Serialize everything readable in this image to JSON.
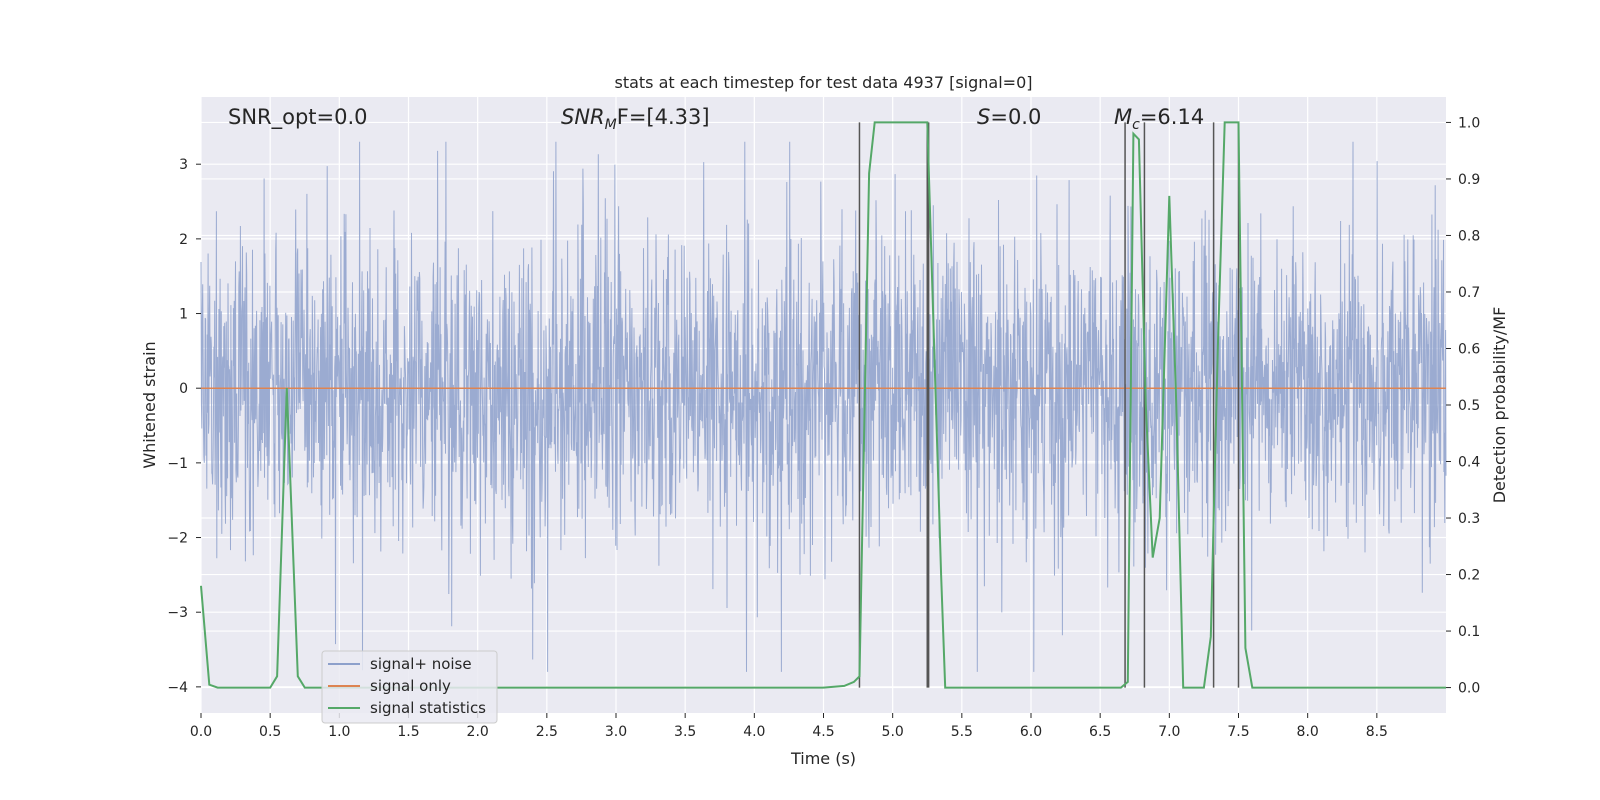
{
  "chart_data": {
    "type": "line",
    "title": "stats at each timestep for test data 4937 [signal=0]",
    "xlabel": "Time (s)",
    "ylabel": "Whitened strain",
    "y2label": "Detection probability/MF",
    "xlim": [
      0,
      9.0
    ],
    "ylim": [
      -4.35,
      3.9
    ],
    "y2lim": [
      -0.045,
      1.045
    ],
    "x_ticks": [
      0.0,
      0.5,
      1.0,
      1.5,
      2.0,
      2.5,
      3.0,
      3.5,
      4.0,
      4.5,
      5.0,
      5.5,
      6.0,
      6.5,
      7.0,
      7.5,
      8.0,
      8.5
    ],
    "x_tick_labels": [
      "0.0",
      "0.5",
      "1.0",
      "1.5",
      "2.0",
      "2.5",
      "3.0",
      "3.5",
      "4.0",
      "4.5",
      "5.0",
      "5.5",
      "6.0",
      "6.5",
      "7.0",
      "7.5",
      "8.0",
      "8.5"
    ],
    "y_ticks": [
      3,
      2,
      1,
      0,
      -1,
      -2,
      -3,
      -4
    ],
    "y_tick_labels": [
      "3",
      "2",
      "1",
      "0",
      "−1",
      "−2",
      "−3",
      "−4"
    ],
    "y2_ticks": [
      1.0,
      0.9,
      0.8,
      0.7,
      0.6,
      0.5,
      0.4,
      0.3,
      0.2,
      0.1,
      0.0
    ],
    "y2_tick_labels": [
      "1.0",
      "0.9",
      "0.8",
      "0.7",
      "0.6",
      "0.5",
      "0.4",
      "0.3",
      "0.2",
      "0.1",
      "0.0"
    ],
    "grid": true,
    "legend_position": "lower-left",
    "annotations": {
      "snr_opt": "SNR_opt=0.0",
      "snr_mf_sym": "SNR",
      "snr_mf_sub": "M",
      "snr_mf_tail": "F=[4.33]",
      "s_sym": "S",
      "s_tail": "=0.0",
      "mc_sym": "M",
      "mc_sub": "c",
      "mc_tail": "=6.14"
    },
    "series": [
      {
        "name": "signal+ noise",
        "color": "#8da0cb",
        "axis": "left",
        "kind": "noise",
        "note_range": [
          -3.8,
          3.3
        ]
      },
      {
        "name": "signal only",
        "color": "#dd8452",
        "axis": "left",
        "x": [
          0.0,
          9.0
        ],
        "y": [
          0.0,
          0.0
        ]
      },
      {
        "name": "signal statistics",
        "color": "#55a868",
        "axis": "right",
        "x": [
          0.0,
          0.06,
          0.12,
          0.5,
          0.55,
          0.62,
          0.7,
          0.75,
          1.0,
          1.5,
          2.0,
          2.5,
          3.0,
          3.5,
          4.0,
          4.5,
          4.65,
          4.72,
          4.76,
          4.83,
          4.87,
          5.0,
          5.1,
          5.25,
          5.3,
          5.35,
          5.38,
          5.5,
          6.0,
          6.5,
          6.65,
          6.7,
          6.74,
          6.78,
          6.83,
          6.88,
          6.93,
          7.0,
          7.05,
          7.1,
          7.15,
          7.25,
          7.3,
          7.35,
          7.4,
          7.45,
          7.5,
          7.55,
          7.6,
          7.7,
          8.0,
          8.5,
          9.0
        ],
        "y": [
          0.18,
          0.005,
          0.0,
          0.0,
          0.02,
          0.53,
          0.02,
          0.0,
          0.0,
          0.0,
          0.0,
          0.0,
          0.0,
          0.0,
          0.0,
          0.0,
          0.003,
          0.01,
          0.02,
          0.91,
          1.0,
          1.0,
          1.0,
          1.0,
          0.6,
          0.2,
          0.0,
          0.0,
          0.0,
          0.0,
          0.0,
          0.01,
          0.98,
          0.97,
          0.5,
          0.23,
          0.3,
          0.87,
          0.5,
          0.0,
          0.0,
          0.0,
          0.09,
          0.6,
          1.0,
          1.0,
          1.0,
          0.07,
          0.0,
          0.0,
          0.0,
          0.0,
          0.0
        ]
      }
    ],
    "vlines": [
      4.76,
      5.25,
      5.26,
      6.68,
      6.82,
      7.32,
      7.5
    ]
  }
}
